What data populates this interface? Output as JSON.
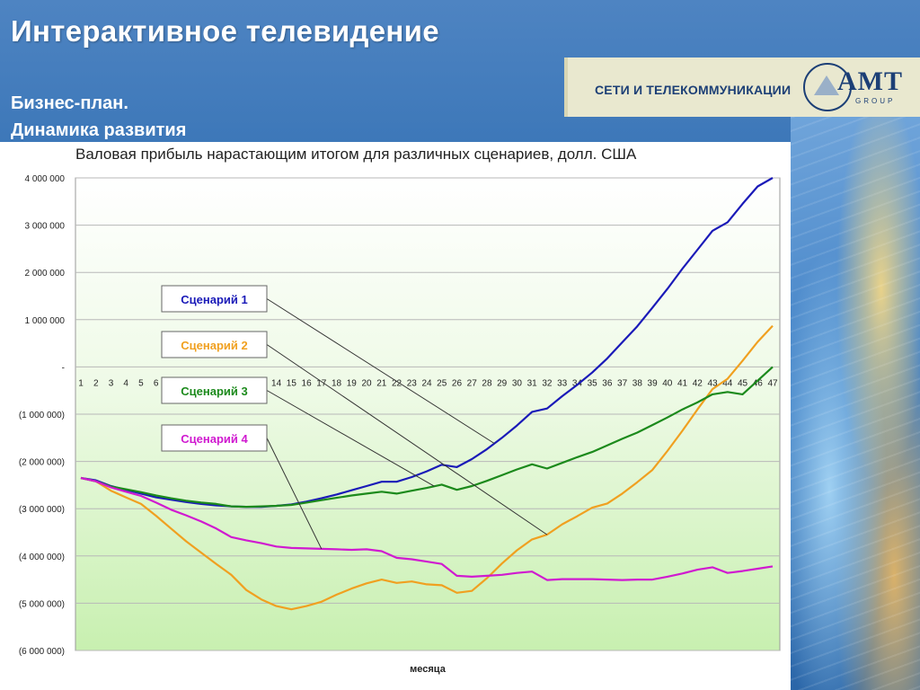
{
  "header": {
    "title": "Интерактивное телевидение",
    "subtitle_line1": "Бизнес-план.",
    "subtitle_line2": "Динамика развития"
  },
  "brand": {
    "tagline": "СЕТИ И ТЕЛЕКОММУНИКАЦИИ",
    "logo_text": "AMT",
    "logo_subtext": "GROUP"
  },
  "chart_data": {
    "type": "line",
    "title": "Валовая прибыль нарастающим итогом для различных сценариев, долл. США",
    "xlabel": "месяца",
    "ylabel": "",
    "x": [
      1,
      2,
      3,
      4,
      5,
      6,
      7,
      8,
      9,
      10,
      11,
      12,
      13,
      14,
      15,
      16,
      17,
      18,
      19,
      20,
      21,
      22,
      23,
      24,
      25,
      26,
      27,
      28,
      29,
      30,
      31,
      32,
      33,
      34,
      35,
      36,
      37,
      38,
      39,
      40,
      41,
      42,
      43,
      44,
      45,
      46,
      47
    ],
    "x_tick_labels": [
      "1",
      "2",
      "3",
      "4",
      "5",
      "6",
      "",
      "",
      "",
      "",
      "",
      "",
      "",
      "14",
      "15",
      "16",
      "17",
      "18",
      "19",
      "20",
      "21",
      "22",
      "23",
      "24",
      "25",
      "26",
      "27",
      "28",
      "29",
      "30",
      "31",
      "32",
      "33",
      "34",
      "35",
      "36",
      "37",
      "38",
      "39",
      "40",
      "41",
      "42",
      "43",
      "44",
      "45",
      "46",
      "47"
    ],
    "ylim": [
      -6000000,
      4000000
    ],
    "y_ticks": [
      4000000,
      3000000,
      2000000,
      1000000,
      0,
      -1000000,
      -2000000,
      -3000000,
      -4000000,
      -5000000,
      -6000000
    ],
    "y_tick_labels": [
      "4 000 000",
      "3 000 000",
      "2 000 000",
      "1 000 000",
      "-",
      "(1 000 000)",
      "(2 000 000)",
      "(3 000 000)",
      "(4 000 000)",
      "(5 000 000)",
      "(6 000 000)"
    ],
    "grid": true,
    "series": [
      {
        "name": "Сценарий 1",
        "color": "#1a1ab8",
        "values": [
          -2350000,
          -2400000,
          -2520000,
          -2600000,
          -2680000,
          -2760000,
          -2810000,
          -2860000,
          -2900000,
          -2930000,
          -2950000,
          -2960000,
          -2960000,
          -2940000,
          -2910000,
          -2850000,
          -2780000,
          -2700000,
          -2610000,
          -2520000,
          -2430000,
          -2430000,
          -2330000,
          -2210000,
          -2070000,
          -2120000,
          -1950000,
          -1740000,
          -1500000,
          -1240000,
          -950000,
          -880000,
          -620000,
          -380000,
          -120000,
          180000,
          520000,
          860000,
          1250000,
          1650000,
          2080000,
          2480000,
          2880000,
          3060000,
          3450000,
          3820000,
          4250000
        ]
      },
      {
        "name": "Сценарий 2",
        "color": "#f0a020",
        "values": [
          -2350000,
          -2420000,
          -2620000,
          -2760000,
          -2900000,
          -3150000,
          -3420000,
          -3690000,
          -3930000,
          -4170000,
          -4400000,
          -4720000,
          -4920000,
          -5060000,
          -5130000,
          -5060000,
          -4970000,
          -4820000,
          -4690000,
          -4580000,
          -4500000,
          -4570000,
          -4540000,
          -4600000,
          -4620000,
          -4780000,
          -4740000,
          -4470000,
          -4160000,
          -3880000,
          -3650000,
          -3550000,
          -3330000,
          -3160000,
          -2980000,
          -2890000,
          -2680000,
          -2440000,
          -2180000,
          -1780000,
          -1350000,
          -900000,
          -470000,
          -250000,
          130000,
          530000,
          870000
        ]
      },
      {
        "name": "Сценарий 3",
        "color": "#1c8a1c",
        "values": [
          -2350000,
          -2420000,
          -2530000,
          -2590000,
          -2650000,
          -2720000,
          -2780000,
          -2830000,
          -2870000,
          -2900000,
          -2950000,
          -2960000,
          -2950000,
          -2940000,
          -2920000,
          -2870000,
          -2820000,
          -2770000,
          -2720000,
          -2680000,
          -2640000,
          -2680000,
          -2620000,
          -2560000,
          -2490000,
          -2600000,
          -2520000,
          -2410000,
          -2290000,
          -2170000,
          -2060000,
          -2150000,
          -2030000,
          -1910000,
          -1800000,
          -1660000,
          -1520000,
          -1390000,
          -1230000,
          -1070000,
          -900000,
          -750000,
          -580000,
          -530000,
          -580000,
          -290000,
          0
        ]
      },
      {
        "name": "Сценарий 4",
        "color": "#d01ad0",
        "values": [
          -2350000,
          -2420000,
          -2550000,
          -2640000,
          -2730000,
          -2870000,
          -3020000,
          -3140000,
          -3270000,
          -3420000,
          -3600000,
          -3670000,
          -3730000,
          -3800000,
          -3830000,
          -3840000,
          -3850000,
          -3860000,
          -3870000,
          -3860000,
          -3900000,
          -4040000,
          -4070000,
          -4120000,
          -4170000,
          -4420000,
          -4440000,
          -4420000,
          -4400000,
          -4360000,
          -4330000,
          -4510000,
          -4490000,
          -4490000,
          -4490000,
          -4500000,
          -4510000,
          -4500000,
          -4500000,
          -4440000,
          -4370000,
          -4290000,
          -4240000,
          -4360000,
          -4320000,
          -4270000,
          -4220000
        ]
      }
    ],
    "annotations": [
      {
        "text": "Сценарий 1",
        "series": 0,
        "target_x": 28.5
      },
      {
        "text": "Сценарий 2",
        "series": 1,
        "target_x": 32
      },
      {
        "text": "Сценарий 3",
        "series": 2,
        "target_x": 24.5
      },
      {
        "text": "Сценарий 4",
        "series": 3,
        "target_x": 17
      }
    ]
  }
}
